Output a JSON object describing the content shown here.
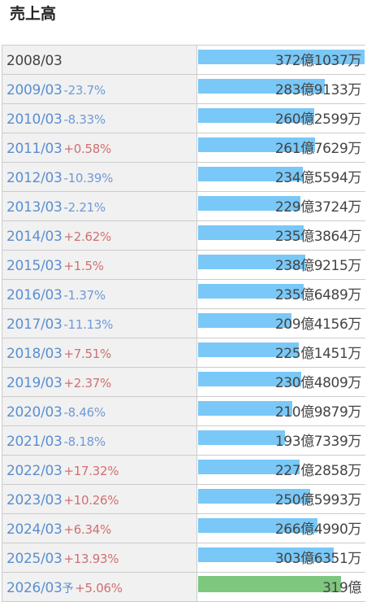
{
  "title": "売上高",
  "colors": {
    "bar": "#79c8f7",
    "forecast_bar": "#7ec77e",
    "positive_change": "#d06f72",
    "negative_change": "#6f9ad6",
    "year_link": "#5b8fd0"
  },
  "chart_data": {
    "type": "bar",
    "orientation": "horizontal",
    "title": "売上高",
    "unit": "億円",
    "xlim": [
      0,
      372.1
    ],
    "categories": [
      "2008/03",
      "2009/03",
      "2010/03",
      "2011/03",
      "2012/03",
      "2013/03",
      "2014/03",
      "2015/03",
      "2016/03",
      "2017/03",
      "2018/03",
      "2019/03",
      "2020/03",
      "2021/03",
      "2022/03",
      "2023/03",
      "2024/03",
      "2025/03",
      "2026/03"
    ],
    "values": [
      372.1037,
      283.9133,
      260.2599,
      261.7629,
      234.5594,
      229.3724,
      235.3864,
      238.9215,
      235.6489,
      209.4156,
      225.1451,
      230.4809,
      210.9879,
      193.7339,
      227.2858,
      250.5993,
      266.499,
      303.6351,
      319
    ],
    "rows": [
      {
        "year": "2008/03",
        "suffix": "",
        "change": "",
        "value_label": "372億1037万",
        "value": 372.1037,
        "forecast": false
      },
      {
        "year": "2009/03",
        "suffix": "",
        "change": "-23.7%",
        "value_label": "283億9133万",
        "value": 283.9133,
        "forecast": false
      },
      {
        "year": "2010/03",
        "suffix": "",
        "change": "-8.33%",
        "value_label": "260億2599万",
        "value": 260.2599,
        "forecast": false
      },
      {
        "year": "2011/03",
        "suffix": "",
        "change": "+0.58%",
        "value_label": "261億7629万",
        "value": 261.7629,
        "forecast": false
      },
      {
        "year": "2012/03",
        "suffix": "",
        "change": "-10.39%",
        "value_label": "234億5594万",
        "value": 234.5594,
        "forecast": false
      },
      {
        "year": "2013/03",
        "suffix": "",
        "change": "-2.21%",
        "value_label": "229億3724万",
        "value": 229.3724,
        "forecast": false
      },
      {
        "year": "2014/03",
        "suffix": "",
        "change": "+2.62%",
        "value_label": "235億3864万",
        "value": 235.3864,
        "forecast": false
      },
      {
        "year": "2015/03",
        "suffix": "",
        "change": "+1.5%",
        "value_label": "238億9215万",
        "value": 238.9215,
        "forecast": false
      },
      {
        "year": "2016/03",
        "suffix": "",
        "change": "-1.37%",
        "value_label": "235億6489万",
        "value": 235.6489,
        "forecast": false
      },
      {
        "year": "2017/03",
        "suffix": "",
        "change": "-11.13%",
        "value_label": "209億4156万",
        "value": 209.4156,
        "forecast": false
      },
      {
        "year": "2018/03",
        "suffix": "",
        "change": "+7.51%",
        "value_label": "225億1451万",
        "value": 225.1451,
        "forecast": false
      },
      {
        "year": "2019/03",
        "suffix": "",
        "change": "+2.37%",
        "value_label": "230億4809万",
        "value": 230.4809,
        "forecast": false
      },
      {
        "year": "2020/03",
        "suffix": "",
        "change": "-8.46%",
        "value_label": "210億9879万",
        "value": 210.9879,
        "forecast": false
      },
      {
        "year": "2021/03",
        "suffix": "",
        "change": "-8.18%",
        "value_label": "193億7339万",
        "value": 193.7339,
        "forecast": false
      },
      {
        "year": "2022/03",
        "suffix": "",
        "change": "+17.32%",
        "value_label": "227億2858万",
        "value": 227.2858,
        "forecast": false
      },
      {
        "year": "2023/03",
        "suffix": "",
        "change": "+10.26%",
        "value_label": "250億5993万",
        "value": 250.5993,
        "forecast": false
      },
      {
        "year": "2024/03",
        "suffix": "",
        "change": "+6.34%",
        "value_label": "266億4990万",
        "value": 266.499,
        "forecast": false
      },
      {
        "year": "2025/03",
        "suffix": "",
        "change": "+13.93%",
        "value_label": "303億6351万",
        "value": 303.6351,
        "forecast": false
      },
      {
        "year": "2026/03",
        "suffix": "予",
        "change": "+5.06%",
        "value_label": "319億",
        "value": 319,
        "forecast": true
      }
    ]
  }
}
